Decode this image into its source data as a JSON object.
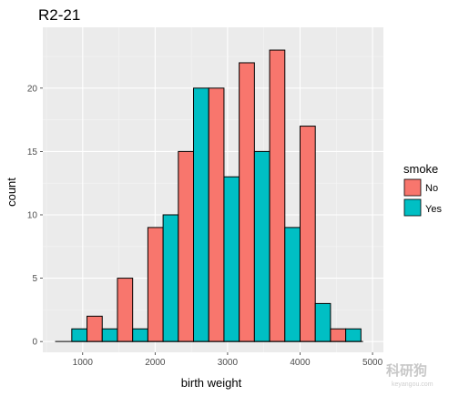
{
  "chart_data": {
    "type": "bar",
    "subtype": "histogram-dodged",
    "title": "R2-21",
    "xlabel": "birth weight",
    "ylabel": "count",
    "xlim": [
      450,
      5150
    ],
    "ylim": [
      -0.85,
      24.8
    ],
    "x_ticks": [
      1000,
      2000,
      3000,
      4000,
      5000
    ],
    "x_tick_labels": [
      "1000",
      "2000",
      "3000",
      "4000",
      "5000"
    ],
    "y_ticks": [
      0,
      5,
      10,
      15,
      20
    ],
    "y_tick_labels": [
      "0",
      "5",
      "10",
      "15",
      "20"
    ],
    "bin_width": 420,
    "bin_centers": [
      850,
      1270,
      1690,
      2110,
      2530,
      2950,
      3370,
      3790,
      4210,
      4630
    ],
    "legend_title": "smoke",
    "legend_position": "right",
    "grid": true,
    "series": [
      {
        "name": "No",
        "color": "#F8766D",
        "values": [
          0,
          2,
          5,
          9,
          15,
          20,
          22,
          23,
          17,
          1
        ]
      },
      {
        "name": "Yes",
        "color": "#00BFC4",
        "values": [
          1,
          1,
          1,
          10,
          20,
          13,
          15,
          9,
          3,
          1
        ]
      }
    ],
    "baseline_x_range": [
      620,
      4870
    ]
  },
  "watermark": {
    "text": "科研狗",
    "subtext": "keyangou.com"
  }
}
